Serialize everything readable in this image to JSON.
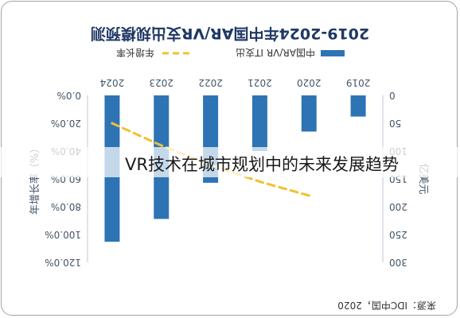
{
  "title": "2019-2024年中国AR/VR支出规模预测",
  "source": "来源：IDC中国，2020",
  "caption": "VR技术在城市规划中的未来发展趋势",
  "chart_data": {
    "type": "bar",
    "note_orientation": "rotated-180",
    "categories": [
      "2019",
      "2020",
      "2021",
      "2022",
      "2023",
      "2024"
    ],
    "series": [
      {
        "name": "中国AR/VR IT支出",
        "type": "bar",
        "axis": "right",
        "color": "#2e74b5",
        "values": [
          38,
          65,
          100,
          157,
          222,
          263
        ]
      },
      {
        "name": "年增长率",
        "type": "line",
        "axis": "left",
        "style": "dashed",
        "color": "#f2c12e",
        "values": [
          null,
          72.0,
          62.0,
          50.0,
          36.0,
          20.0
        ]
      }
    ],
    "y_right": {
      "label": "亿美元",
      "ticks": [
        0,
        50,
        100,
        150,
        200,
        250,
        300
      ],
      "range": [
        0,
        300
      ]
    },
    "y_left": {
      "label": "年增长率（%）",
      "ticks": [
        "0.0%",
        "20.0%",
        "40.0%",
        "60.0%",
        "80.0%",
        "100.0%",
        "120.0%"
      ],
      "range": [
        0,
        120
      ]
    },
    "legend_position": "bottom",
    "grid": false
  }
}
